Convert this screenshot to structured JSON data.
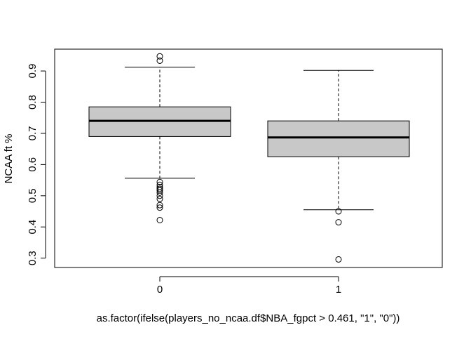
{
  "chart_data": {
    "type": "box",
    "title": "",
    "xlabel": "as.factor(ifelse(players_no_ncaa.df$NBA_fgpct > 0.461, \"1\", \"0\"))",
    "ylabel": "NCAA ft %",
    "ylim": [
      0.27,
      0.97
    ],
    "yticks": [
      0.3,
      0.4,
      0.5,
      0.6,
      0.7,
      0.8,
      0.9
    ],
    "ytick_labels": [
      "0.3",
      "0.4",
      "0.5",
      "0.6",
      "0.7",
      "0.8",
      "0.9"
    ],
    "categories": [
      "0",
      "1"
    ],
    "boxes": [
      {
        "category": "0",
        "whisker_low": 0.556,
        "q1": 0.69,
        "median": 0.74,
        "q3": 0.785,
        "whisker_high": 0.912,
        "outliers": [
          0.947,
          0.933,
          0.544,
          0.535,
          0.528,
          0.522,
          0.517,
          0.51,
          0.5,
          0.49,
          0.47,
          0.462,
          0.422
        ]
      },
      {
        "category": "1",
        "whisker_low": 0.455,
        "q1": 0.625,
        "median": 0.687,
        "q3": 0.74,
        "whisker_high": 0.902,
        "outliers": [
          0.45,
          0.415,
          0.296
        ]
      }
    ],
    "box_fill": "#c8c8c8",
    "grid": false,
    "legend": "none"
  }
}
